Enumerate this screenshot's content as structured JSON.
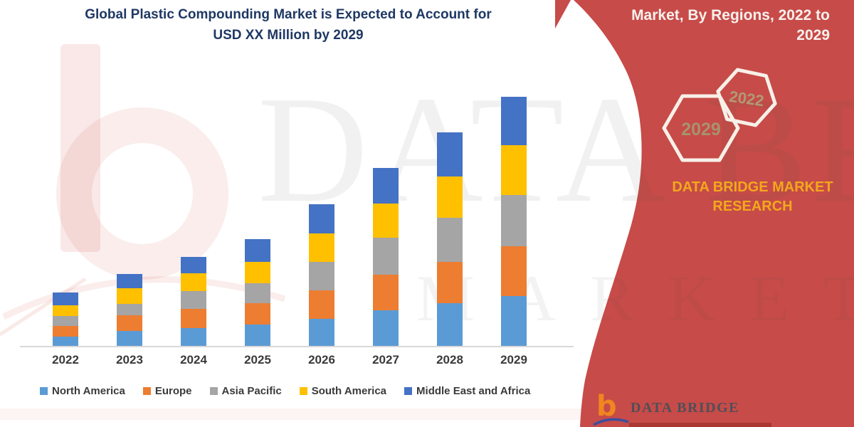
{
  "header": {
    "title_line1": "Global Plastic Compounding Market is Expected to Account for",
    "title_line2": "USD XX Million by 2029"
  },
  "side_panel": {
    "heading_line1": "Market, By Regions, 2022 to",
    "heading_line2": "2029",
    "hexagons": [
      {
        "label": "2029"
      },
      {
        "label": "2022"
      }
    ],
    "brand_line1": "DATA BRIDGE MARKET",
    "brand_line2": "RESEARCH",
    "panel_color": "#C74B48"
  },
  "watermark": {
    "line1": "DATA BRIDGE",
    "line2": "MARKET RES"
  },
  "footer_logo": {
    "glyph": "b",
    "wordmark": "DATA BRIDGE"
  },
  "chart_data": {
    "type": "bar",
    "stacked": true,
    "title": "Global Plastic Compounding Market is Expected to Account for USD XX Million by 2029",
    "xlabel": "",
    "ylabel": "",
    "value_note": "USD XX Million — no numeric axis shown; values are relative segment heights",
    "grid": false,
    "y_axis_shown": false,
    "legend_position": "bottom",
    "categories": [
      "2022",
      "2023",
      "2024",
      "2025",
      "2026",
      "2027",
      "2028",
      "2029"
    ],
    "series": [
      {
        "name": "North America",
        "color": "#5B9BD5",
        "values": [
          13,
          21,
          25,
          30,
          38,
          50,
          60,
          70
        ]
      },
      {
        "name": "Europe",
        "color": "#ED7D31",
        "values": [
          15,
          22,
          27,
          30,
          40,
          50,
          58,
          70
        ]
      },
      {
        "name": "Asia Pacific",
        "color": "#A5A5A5",
        "values": [
          14,
          16,
          25,
          28,
          40,
          52,
          62,
          72
        ]
      },
      {
        "name": "South America",
        "color": "#FFC000",
        "values": [
          15,
          22,
          25,
          30,
          40,
          48,
          58,
          70
        ]
      },
      {
        "name": "Middle East and Africa",
        "color": "#4472C4",
        "values": [
          18,
          20,
          23,
          32,
          41,
          50,
          62,
          68
        ]
      }
    ],
    "totals": [
      75,
      101,
      125,
      150,
      199,
      250,
      300,
      350
    ]
  },
  "colors": {
    "accent_red": "#C74B48",
    "title_navy": "#1F3864",
    "brand_yellow": "#F2A81C",
    "axis_text": "#3A3A3A"
  }
}
